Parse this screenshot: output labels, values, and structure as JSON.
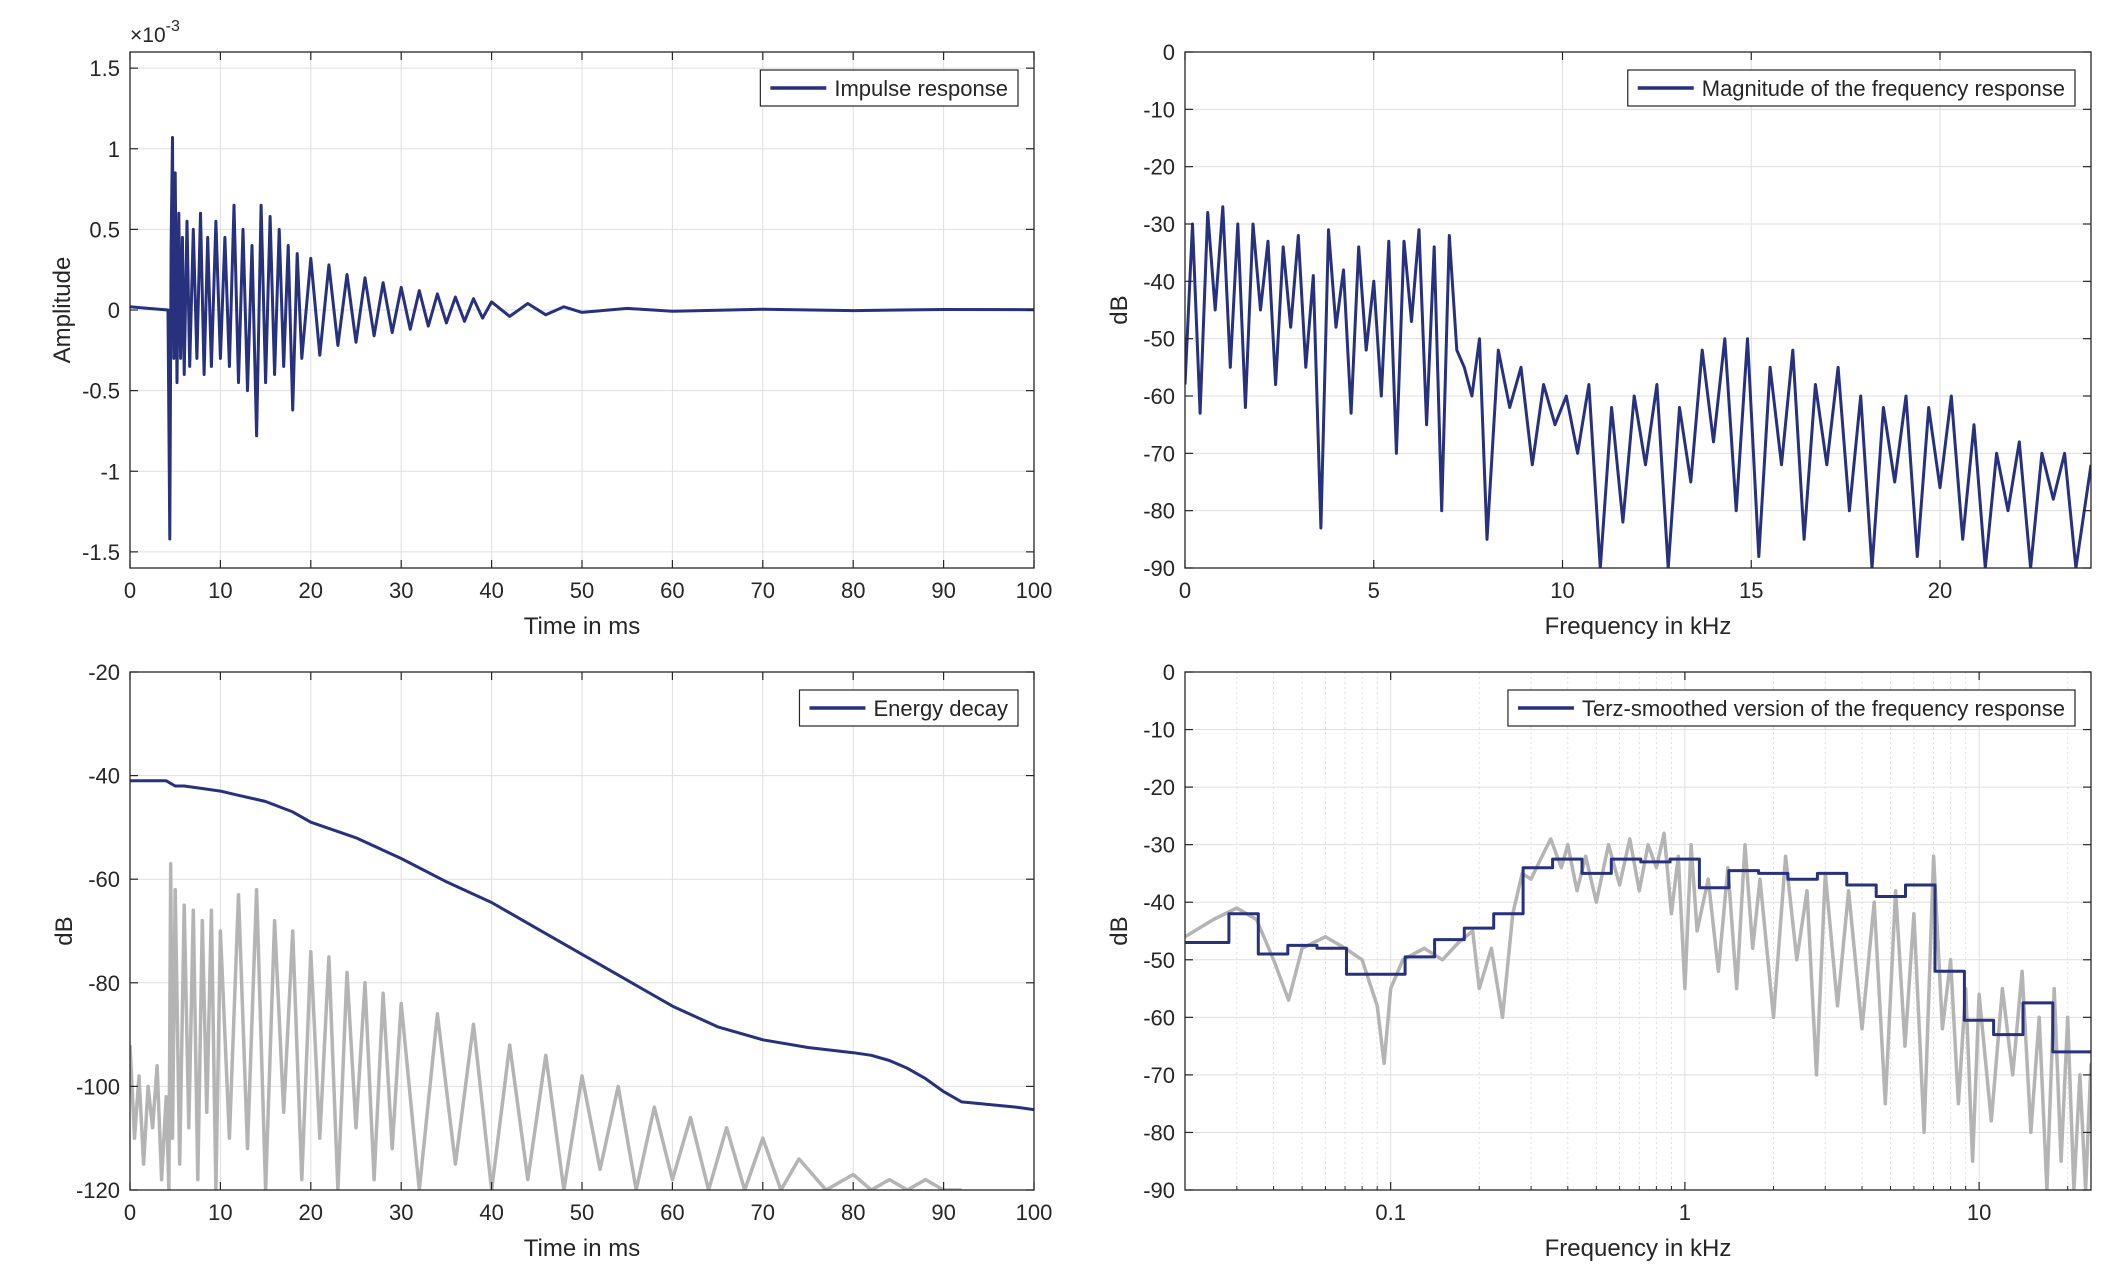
{
  "figure": {
    "colors": {
      "primary": "#27317e",
      "secondary": "#b4b4b4",
      "axes": "#262626",
      "grid": "#dfdfdf"
    }
  },
  "chart_data": [
    {
      "type": "line",
      "legend": "Impulse response",
      "legend_position": "top-right",
      "xlabel": "Time in ms",
      "ylabel": "Amplitude",
      "exponent_label": "×10",
      "exponent_power": "-3",
      "xlim": [
        0,
        100
      ],
      "ylim": [
        -1.6,
        1.6
      ],
      "xticks": [
        0,
        10,
        20,
        30,
        40,
        50,
        60,
        70,
        80,
        90,
        100
      ],
      "xtick_labels": [
        "0",
        "10",
        "20",
        "30",
        "40",
        "50",
        "60",
        "70",
        "80",
        "90",
        "100"
      ],
      "yticks": [
        -1.5,
        -1,
        -0.5,
        0,
        0.5,
        1,
        1.5
      ],
      "ytick_labels": [
        "-1.5",
        "-1",
        "-0.5",
        "0",
        "0.5",
        "1",
        "1.5"
      ],
      "grid": true,
      "series": [
        {
          "color": "#27317e",
          "x": [
            0,
            2,
            4.2,
            4.4,
            4.55,
            4.7,
            4.85,
            5.0,
            5.2,
            5.4,
            5.6,
            5.8,
            6.0,
            6.3,
            6.6,
            7.0,
            7.4,
            7.8,
            8.2,
            8.6,
            9.0,
            9.5,
            10.0,
            10.5,
            11.0,
            11.5,
            12.0,
            12.5,
            13.0,
            13.5,
            14.0,
            14.5,
            15.0,
            15.5,
            16.0,
            16.5,
            17.0,
            17.5,
            18.0,
            18.5,
            19.0,
            20.0,
            21.0,
            22.0,
            23.0,
            24.0,
            25.0,
            26.0,
            27.0,
            28.0,
            29.0,
            30.0,
            31.0,
            32.0,
            33.0,
            34.0,
            35.0,
            36.0,
            37.0,
            38.0,
            39.0,
            40.0,
            42.0,
            44.0,
            46.0,
            48.0,
            50.0,
            55.0,
            60.0,
            70.0,
            80.0,
            90.0,
            100.0
          ],
          "y": [
            0.02,
            0.01,
            0.0,
            -1.42,
            0.4,
            1.07,
            -0.3,
            0.85,
            -0.45,
            0.6,
            -0.3,
            0.45,
            -0.4,
            0.55,
            -0.35,
            0.5,
            -0.3,
            0.6,
            -0.4,
            0.45,
            -0.35,
            0.55,
            -0.3,
            0.45,
            -0.35,
            0.65,
            -0.45,
            0.5,
            -0.5,
            0.4,
            -0.78,
            0.65,
            -0.45,
            0.58,
            -0.4,
            0.5,
            -0.35,
            0.4,
            -0.62,
            0.35,
            -0.3,
            0.32,
            -0.28,
            0.28,
            -0.22,
            0.22,
            -0.2,
            0.2,
            -0.16,
            0.17,
            -0.14,
            0.14,
            -0.12,
            0.12,
            -0.1,
            0.1,
            -0.08,
            0.08,
            -0.07,
            0.07,
            -0.05,
            0.05,
            -0.04,
            0.04,
            -0.03,
            0.02,
            -0.015,
            0.01,
            -0.008,
            0.005,
            -0.004,
            0.003,
            0.002
          ]
        }
      ]
    },
    {
      "type": "line",
      "legend": "Magnitude of the frequency response",
      "legend_position": "top-right",
      "xlabel": "Frequency in kHz",
      "ylabel": "dB",
      "xlim": [
        0,
        24
      ],
      "ylim": [
        -90,
        0
      ],
      "xticks": [
        0,
        5,
        10,
        15,
        20
      ],
      "xtick_labels": [
        "0",
        "5",
        "10",
        "15",
        "20"
      ],
      "yticks": [
        0,
        -10,
        -20,
        -30,
        -40,
        -50,
        -60,
        -70,
        -80,
        -90
      ],
      "ytick_labels": [
        "0",
        "-10",
        "-20",
        "-30",
        "-40",
        "-50",
        "-60",
        "-70",
        "-80",
        "-90"
      ],
      "grid": true,
      "series": [
        {
          "color": "#27317e",
          "x": [
            0,
            0.2,
            0.4,
            0.6,
            0.8,
            1.0,
            1.2,
            1.4,
            1.6,
            1.8,
            2.0,
            2.2,
            2.4,
            2.6,
            2.8,
            3.0,
            3.2,
            3.4,
            3.6,
            3.8,
            4.0,
            4.2,
            4.4,
            4.6,
            4.8,
            5.0,
            5.2,
            5.4,
            5.6,
            5.8,
            6.0,
            6.2,
            6.4,
            6.6,
            6.8,
            7.0,
            7.2,
            7.4,
            7.6,
            7.8,
            8.0,
            8.3,
            8.6,
            8.9,
            9.2,
            9.5,
            9.8,
            10.1,
            10.4,
            10.7,
            11.0,
            11.3,
            11.6,
            11.9,
            12.2,
            12.5,
            12.8,
            13.1,
            13.4,
            13.7,
            14.0,
            14.3,
            14.6,
            14.9,
            15.2,
            15.5,
            15.8,
            16.1,
            16.4,
            16.7,
            17.0,
            17.3,
            17.6,
            17.9,
            18.2,
            18.5,
            18.8,
            19.1,
            19.4,
            19.7,
            20.0,
            20.3,
            20.6,
            20.9,
            21.2,
            21.5,
            21.8,
            22.1,
            22.4,
            22.7,
            23.0,
            23.3,
            23.6,
            24.0
          ],
          "y": [
            -58,
            -30,
            -63,
            -28,
            -45,
            -27,
            -55,
            -30,
            -62,
            -30,
            -45,
            -33,
            -58,
            -34,
            -48,
            -32,
            -55,
            -39,
            -83,
            -31,
            -48,
            -38,
            -63,
            -34,
            -52,
            -40,
            -60,
            -33,
            -70,
            -33,
            -47,
            -31,
            -65,
            -34,
            -80,
            -32,
            -52,
            -55,
            -60,
            -50,
            -85,
            -52,
            -62,
            -55,
            -72,
            -58,
            -65,
            -60,
            -70,
            -58,
            -90,
            -62,
            -82,
            -60,
            -72,
            -58,
            -90,
            -62,
            -75,
            -52,
            -68,
            -50,
            -80,
            -50,
            -88,
            -55,
            -72,
            -52,
            -85,
            -58,
            -72,
            -55,
            -80,
            -60,
            -90,
            -62,
            -75,
            -60,
            -88,
            -62,
            -76,
            -60,
            -85,
            -65,
            -90,
            -70,
            -80,
            -68,
            -90,
            -70,
            -78,
            -70,
            -90,
            -72
          ]
        }
      ]
    },
    {
      "type": "line",
      "legend": "Energy decay",
      "legend_position": "top-right",
      "xlabel": "Time in ms",
      "ylabel": "dB",
      "xlim": [
        0,
        100
      ],
      "ylim": [
        -120,
        -20
      ],
      "xticks": [
        0,
        10,
        20,
        30,
        40,
        50,
        60,
        70,
        80,
        90,
        100
      ],
      "xtick_labels": [
        "0",
        "10",
        "20",
        "30",
        "40",
        "50",
        "60",
        "70",
        "80",
        "90",
        "100"
      ],
      "yticks": [
        -20,
        -40,
        -60,
        -80,
        -100,
        -120
      ],
      "ytick_labels": [
        "-20",
        "-40",
        "-60",
        "-80",
        "-100",
        "-120"
      ],
      "grid": true,
      "series": [
        {
          "color": "#b4b4b4",
          "x": [
            0,
            0.5,
            1,
            1.5,
            2,
            2.5,
            3,
            3.5,
            4,
            4.3,
            4.5,
            4.7,
            5,
            5.5,
            6,
            6.5,
            7,
            7.5,
            8,
            8.5,
            9,
            9.5,
            10,
            11,
            12,
            13,
            14,
            15,
            16,
            17,
            18,
            19,
            20,
            21,
            22,
            23,
            24,
            25,
            26,
            27,
            28,
            29,
            30,
            32,
            34,
            36,
            38,
            40,
            42,
            44,
            46,
            48,
            50,
            52,
            54,
            56,
            58,
            60,
            62,
            64,
            66,
            68,
            70,
            72,
            74,
            76,
            77,
            80,
            82,
            84,
            86,
            88,
            90,
            92
          ],
          "y": [
            -92,
            -110,
            -98,
            -115,
            -100,
            -108,
            -96,
            -118,
            -102,
            -120,
            -57,
            -110,
            -62,
            -115,
            -65,
            -108,
            -66,
            -118,
            -68,
            -105,
            -66,
            -120,
            -70,
            -110,
            -63,
            -112,
            -62,
            -120,
            -68,
            -105,
            -70,
            -118,
            -74,
            -110,
            -75,
            -120,
            -78,
            -108,
            -80,
            -118,
            -82,
            -112,
            -84,
            -120,
            -86,
            -115,
            -88,
            -120,
            -92,
            -118,
            -94,
            -120,
            -98,
            -116,
            -100,
            -120,
            -104,
            -118,
            -106,
            -120,
            -108,
            -120,
            -110,
            -120,
            -114,
            -118,
            -120,
            -117,
            -120,
            -118,
            -120,
            -118,
            -120,
            -120
          ]
        },
        {
          "color": "#27317e",
          "x": [
            0,
            2,
            4,
            5,
            6,
            8,
            10,
            12,
            15,
            18,
            20,
            25,
            30,
            35,
            40,
            45,
            50,
            55,
            60,
            65,
            70,
            75,
            80,
            82,
            84,
            86,
            88,
            90,
            92,
            95,
            98,
            100
          ],
          "y": [
            -41,
            -41,
            -41,
            -42,
            -42,
            -42.5,
            -43,
            -43.8,
            -45,
            -47,
            -49,
            -52,
            -56,
            -60.5,
            -64.5,
            -69.5,
            -74.5,
            -79.5,
            -84.5,
            -88.5,
            -91,
            -92.5,
            -93.5,
            -94,
            -95,
            -96.5,
            -98.5,
            -101,
            -103,
            -103.5,
            -104,
            -104.5
          ]
        }
      ]
    },
    {
      "type": "line",
      "legend": "Terz-smoothed version of the frequency response",
      "legend_position": "top-right",
      "xlabel": "Frequency in kHz",
      "ylabel": "dB",
      "xscale": "log",
      "xlim": [
        0.02,
        24
      ],
      "ylim": [
        -90,
        0
      ],
      "xticks": [
        0.1,
        1,
        10
      ],
      "xtick_labels": [
        "0.1",
        "1",
        "10"
      ],
      "minor_xticks": [
        0.03,
        0.04,
        0.05,
        0.06,
        0.07,
        0.08,
        0.09,
        0.2,
        0.3,
        0.4,
        0.5,
        0.6,
        0.7,
        0.8,
        0.9,
        2,
        3,
        4,
        5,
        6,
        7,
        8,
        9,
        20
      ],
      "yticks": [
        0,
        -10,
        -20,
        -30,
        -40,
        -50,
        -60,
        -70,
        -80,
        -90
      ],
      "ytick_labels": [
        "0",
        "-10",
        "-20",
        "-30",
        "-40",
        "-50",
        "-60",
        "-70",
        "-80",
        "-90"
      ],
      "grid": true,
      "series": [
        {
          "color": "#b4b4b4",
          "x": [
            0.02,
            0.025,
            0.03,
            0.035,
            0.04,
            0.045,
            0.05,
            0.06,
            0.07,
            0.08,
            0.09,
            0.095,
            0.1,
            0.11,
            0.13,
            0.15,
            0.17,
            0.19,
            0.2,
            0.22,
            0.24,
            0.26,
            0.28,
            0.3,
            0.32,
            0.35,
            0.38,
            0.4,
            0.43,
            0.46,
            0.5,
            0.55,
            0.6,
            0.65,
            0.7,
            0.75,
            0.8,
            0.85,
            0.9,
            0.95,
            1.0,
            1.05,
            1.1,
            1.2,
            1.3,
            1.4,
            1.5,
            1.6,
            1.7,
            1.8,
            2.0,
            2.2,
            2.4,
            2.6,
            2.8,
            3.0,
            3.3,
            3.6,
            4.0,
            4.4,
            4.8,
            5.2,
            5.6,
            6.0,
            6.5,
            7.0,
            7.5,
            8.0,
            8.5,
            9.0,
            9.5,
            10,
            11,
            12,
            13,
            14,
            15,
            16,
            17,
            18,
            19,
            20,
            21,
            22,
            23,
            24
          ],
          "y": [
            -46,
            -43,
            -41,
            -43,
            -50,
            -57,
            -48,
            -46,
            -48,
            -50,
            -58,
            -68,
            -55,
            -50,
            -48,
            -50,
            -47,
            -45,
            -55,
            -48,
            -60,
            -42,
            -35,
            -36,
            -33,
            -29,
            -34,
            -30,
            -38,
            -32,
            -40,
            -30,
            -37,
            -29,
            -38,
            -30,
            -34,
            -28,
            -42,
            -32,
            -55,
            -30,
            -45,
            -36,
            -52,
            -34,
            -55,
            -30,
            -48,
            -36,
            -60,
            -32,
            -50,
            -38,
            -70,
            -35,
            -58,
            -38,
            -62,
            -40,
            -75,
            -38,
            -65,
            -42,
            -80,
            -32,
            -62,
            -50,
            -75,
            -55,
            -85,
            -56,
            -78,
            -55,
            -70,
            -52,
            -80,
            -60,
            -90,
            -55,
            -85,
            -60,
            -90,
            -70,
            -90,
            -68
          ]
        },
        {
          "color": "#27317e",
          "x": [
            0.02,
            0.0282,
            0.0282,
            0.0355,
            0.0355,
            0.0447,
            0.0447,
            0.0562,
            0.0562,
            0.0708,
            0.0708,
            0.0891,
            0.0891,
            0.112,
            0.112,
            0.141,
            0.141,
            0.178,
            0.178,
            0.224,
            0.224,
            0.282,
            0.282,
            0.355,
            0.355,
            0.447,
            0.447,
            0.562,
            0.562,
            0.708,
            0.708,
            0.891,
            0.891,
            1.12,
            1.12,
            1.41,
            1.41,
            1.78,
            1.78,
            2.24,
            2.24,
            2.82,
            2.82,
            3.55,
            3.55,
            4.47,
            4.47,
            5.62,
            5.62,
            7.08,
            7.08,
            8.91,
            8.91,
            11.2,
            11.2,
            14.1,
            14.1,
            17.8,
            17.8,
            24
          ],
          "y": [
            -47,
            -47,
            -42,
            -42,
            -49,
            -49,
            -47.5,
            -47.5,
            -48,
            -48,
            -52.5,
            -52.5,
            -52.5,
            -52.5,
            -49.5,
            -49.5,
            -46.5,
            -46.5,
            -44.5,
            -44.5,
            -42,
            -42,
            -34,
            -34,
            -32.5,
            -32.5,
            -35,
            -35,
            -32.5,
            -32.5,
            -33,
            -33,
            -32.5,
            -32.5,
            -37.5,
            -37.5,
            -34.5,
            -34.5,
            -35,
            -35,
            -36,
            -36,
            -35,
            -35,
            -37,
            -37,
            -39,
            -39,
            -37,
            -37,
            -52,
            -52,
            -60.5,
            -60.5,
            -63,
            -63,
            -57.5,
            -57.5,
            -66,
            -66
          ]
        }
      ]
    }
  ]
}
